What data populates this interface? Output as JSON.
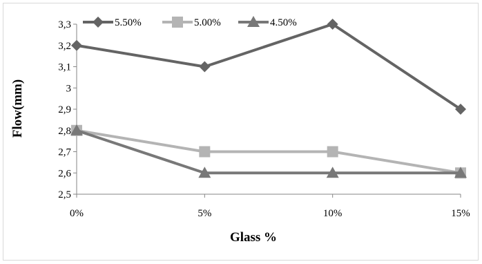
{
  "chart_data": {
    "type": "line",
    "categories": [
      "0%",
      "5%",
      "10%",
      "15%"
    ],
    "series": [
      {
        "name": "5.50%",
        "values": [
          3.2,
          3.1,
          3.3,
          2.9
        ],
        "color": "#646464",
        "marker": "diamond"
      },
      {
        "name": "5.00%",
        "values": [
          2.8,
          2.7,
          2.7,
          2.6
        ],
        "color": "#b4b4b4",
        "marker": "square"
      },
      {
        "name": "4.50%",
        "values": [
          2.8,
          2.6,
          2.6,
          2.6
        ],
        "color": "#787878",
        "marker": "triangle"
      }
    ],
    "xlabel": "Glass %",
    "ylabel": "Flow(mm)",
    "ylim": [
      2.5,
      3.3
    ],
    "yticks": [
      "2,5",
      "2,6",
      "2,7",
      "2,8",
      "2,9",
      "3",
      "3,1",
      "3,2",
      "3,3"
    ],
    "grid": false,
    "legend_position": "top-left"
  }
}
